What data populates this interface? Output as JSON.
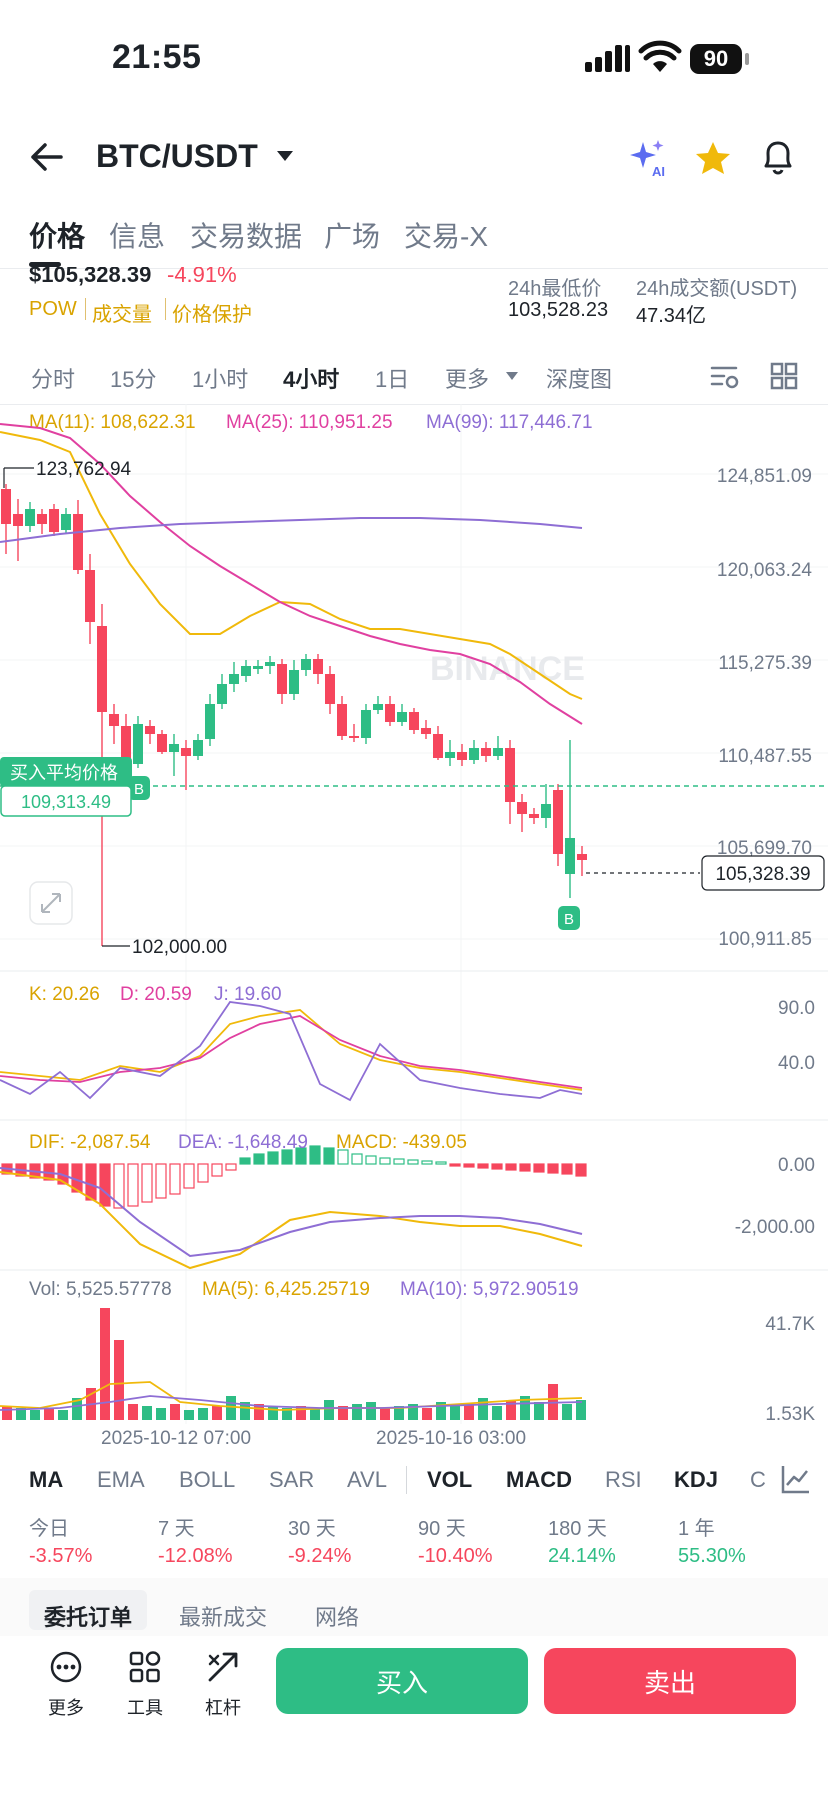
{
  "status": {
    "time": "21:55",
    "battery": "90"
  },
  "header": {
    "pair": "BTC/USDT"
  },
  "tabs": [
    "价格",
    "信息",
    "交易数据",
    "广场",
    "交易-X"
  ],
  "price": {
    "last": "$105,328.39",
    "change": "-4.91%",
    "tags": [
      "POW",
      "成交量",
      "价格保护"
    ]
  },
  "stats": {
    "low_label": "24h最低价",
    "low_value": "103,528.23",
    "vol_label": "24h成交额(USDT)",
    "vol_value": "47.34亿"
  },
  "timeframes": [
    "分时",
    "15分",
    "1小时",
    "4小时",
    "1日",
    "更多",
    "深度图"
  ],
  "ma_legend": {
    "ma11": "MA(11): 108,622.31",
    "ma25": "MA(25): 110,951.25",
    "ma99": "MA(99): 117,446.71"
  },
  "main_axis": [
    "124,851.09",
    "120,063.24",
    "115,275.39",
    "110,487.55",
    "105,699.70",
    "100,911.85"
  ],
  "markers": {
    "high": "123,762.94",
    "low": "102,000.00",
    "current": "105,328.39",
    "avg_label": "买入平均价格",
    "avg_value": "109,313.49",
    "buy_tag": "B"
  },
  "watermark": "BINANCE",
  "kdj": {
    "k": "K: 20.26",
    "d": "D: 20.59",
    "j": "J: 19.60",
    "axis": [
      "90.0",
      "40.0"
    ]
  },
  "macd": {
    "dif": "DIF: -2,087.54",
    "dea": "DEA: -1,648.49",
    "macd": "MACD: -439.05",
    "axis": [
      "0.00",
      "-2,000.00"
    ]
  },
  "vol": {
    "vol": "Vol: 5,525.57778",
    "ma5": "MA(5): 6,425.25719",
    "ma10": "MA(10): 5,972.90519",
    "axis": [
      "41.7K",
      "1.53K"
    ]
  },
  "dates": [
    "2025-10-12 07:00",
    "2025-10-16 03:00"
  ],
  "indicators": [
    "MA",
    "EMA",
    "BOLL",
    "SAR",
    "AVL",
    "VOL",
    "MACD",
    "RSI",
    "KDJ",
    "C"
  ],
  "performance": [
    {
      "label": "今日",
      "value": "-3.57%",
      "dir": "down"
    },
    {
      "label": "7 天",
      "value": "-12.08%",
      "dir": "down"
    },
    {
      "label": "30 天",
      "value": "-9.24%",
      "dir": "down"
    },
    {
      "label": "90 天",
      "value": "-10.40%",
      "dir": "down"
    },
    {
      "label": "180 天",
      "value": "24.14%",
      "dir": "up"
    },
    {
      "label": "1 年",
      "value": "55.30%",
      "dir": "up"
    }
  ],
  "bottom_tabs": [
    "委托订单",
    "最新成交",
    "网络"
  ],
  "tools": [
    "更多",
    "工具",
    "杠杆"
  ],
  "actions": {
    "buy": "买入",
    "sell": "卖出"
  },
  "colors": {
    "up": "#2ebd85",
    "down": "#f6465d",
    "accent": "#f0b90b"
  }
}
